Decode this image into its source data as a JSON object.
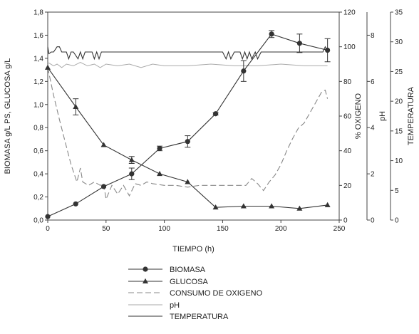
{
  "chart_data": {
    "type": "line",
    "xlabel": "TIEMPO (h)",
    "xlim": [
      0,
      250
    ],
    "x_ticks": [
      0,
      50,
      100,
      150,
      200,
      250
    ],
    "axes": {
      "left": {
        "label": "BIOMASA g/L PS, GLUCOSA g/L",
        "lim": [
          0,
          1.8
        ],
        "ticks": [
          "0,0",
          "0,2",
          "0,4",
          "0,6",
          "0,8",
          "1,0",
          "1,2",
          "1,4",
          "1,6",
          "1,8"
        ]
      },
      "oxygen": {
        "label": "% OXIGENO",
        "lim": [
          0,
          120
        ],
        "ticks": [
          "0",
          "20",
          "40",
          "60",
          "80",
          "100",
          "120"
        ]
      },
      "ph": {
        "label": "pH",
        "lim": [
          0,
          9
        ],
        "ticks": [
          "0",
          "2",
          "4",
          "6",
          "8"
        ]
      },
      "temp": {
        "label": "TEMPERATURA",
        "lim": [
          0,
          35
        ],
        "ticks": [
          "0",
          "5",
          "10",
          "15",
          "20",
          "25",
          "30",
          "35"
        ]
      }
    },
    "series": [
      {
        "name": "BIOMASA",
        "axis": "left",
        "marker": "circle",
        "style": "solid",
        "x": [
          0,
          24,
          48,
          72,
          96,
          120,
          144,
          168,
          192,
          216,
          240
        ],
        "y": [
          0.03,
          0.14,
          0.29,
          0.4,
          0.62,
          0.68,
          0.92,
          1.29,
          1.61,
          1.53,
          1.47
        ],
        "err": [
          0,
          0,
          0,
          0.05,
          0.02,
          0.05,
          0.01,
          0.09,
          0.03,
          0.08,
          0.1
        ]
      },
      {
        "name": "GLUCOSA",
        "axis": "left",
        "marker": "triangle",
        "style": "solid",
        "x": [
          0,
          24,
          48,
          72,
          96,
          120,
          144,
          168,
          192,
          216,
          240
        ],
        "y": [
          1.32,
          0.98,
          0.65,
          0.52,
          0.4,
          0.33,
          0.11,
          0.12,
          0.12,
          0.1,
          0.13
        ],
        "err": [
          0,
          0.07,
          0,
          0.03,
          0,
          0,
          0,
          0,
          0,
          0,
          0
        ]
      },
      {
        "name": "CONSUMO DE OXIGENO",
        "axis": "oxygen",
        "marker": "none",
        "style": "dashed",
        "x": [
          0,
          5,
          10,
          15,
          20,
          25,
          28,
          30,
          35,
          40,
          45,
          48,
          50,
          55,
          60,
          65,
          70,
          75,
          80,
          85,
          90,
          100,
          110,
          120,
          130,
          140,
          150,
          160,
          170,
          175,
          180,
          185,
          190,
          195,
          200,
          205,
          210,
          215,
          220,
          225,
          230,
          235,
          238,
          240
        ],
        "y": [
          88,
          72,
          58,
          45,
          32,
          22,
          30,
          22,
          20,
          22,
          20,
          21,
          12,
          20,
          15,
          20,
          14,
          21,
          20,
          22,
          21,
          20,
          20,
          19,
          20,
          20,
          20,
          20,
          20,
          24,
          21,
          17,
          22,
          26,
          32,
          40,
          47,
          53,
          56,
          62,
          68,
          74,
          75,
          70
        ]
      },
      {
        "name": "pH",
        "axis": "oxygen",
        "marker": "none",
        "style": "solid-light",
        "x": [
          0,
          5,
          8,
          12,
          16,
          22,
          28,
          34,
          40,
          45,
          50,
          60,
          70,
          80,
          90,
          100,
          120,
          140,
          160,
          180,
          200,
          220,
          240
        ],
        "y": [
          91,
          89,
          90,
          88,
          90,
          89,
          91,
          89,
          90,
          88,
          90,
          89,
          90,
          88,
          90,
          89,
          89,
          90,
          89,
          89,
          90,
          89,
          89
        ]
      },
      {
        "name": "TEMPERATURA",
        "axis": "oxygen",
        "marker": "none",
        "style": "solid-dark",
        "x": [
          0,
          1,
          3,
          5,
          8,
          10,
          12,
          16,
          18,
          20,
          22,
          26,
          28,
          30,
          32,
          38,
          40,
          42,
          44,
          46,
          50,
          60,
          70,
          80,
          90,
          100,
          110,
          120,
          130,
          140,
          150,
          153,
          155,
          157,
          160,
          165,
          167,
          169,
          171,
          173,
          175,
          178,
          180,
          183,
          186,
          190,
          200,
          210,
          220,
          230,
          236,
          238,
          240
        ],
        "y": [
          100,
          96,
          97,
          97,
          100,
          100,
          97,
          97,
          93,
          97,
          97,
          93,
          97,
          93,
          97,
          97,
          93,
          97,
          93,
          97,
          97,
          97,
          97,
          97,
          97,
          97,
          97,
          97,
          97,
          97,
          97,
          93,
          97,
          93,
          97,
          97,
          93,
          97,
          93,
          97,
          93,
          97,
          93,
          97,
          97,
          97,
          97,
          97,
          97,
          97,
          97,
          100,
          97
        ]
      }
    ],
    "legend": {
      "placement": "bottom",
      "entries": [
        {
          "label": "BIOMASA",
          "marker": "circle",
          "style": "solid"
        },
        {
          "label": "GLUCOSA",
          "marker": "triangle",
          "style": "solid"
        },
        {
          "label": "CONSUMO DE OXIGENO",
          "marker": "none",
          "style": "dashed"
        },
        {
          "label": "pH",
          "marker": "none",
          "style": "solid-light"
        },
        {
          "label": "TEMPERATURA",
          "marker": "none",
          "style": "solid-dark"
        }
      ]
    },
    "grid": false,
    "colors": {
      "axis": "#444444",
      "series_dark": "#333333",
      "series_dashed": "#888888",
      "series_light": "#aaaaaa"
    }
  }
}
